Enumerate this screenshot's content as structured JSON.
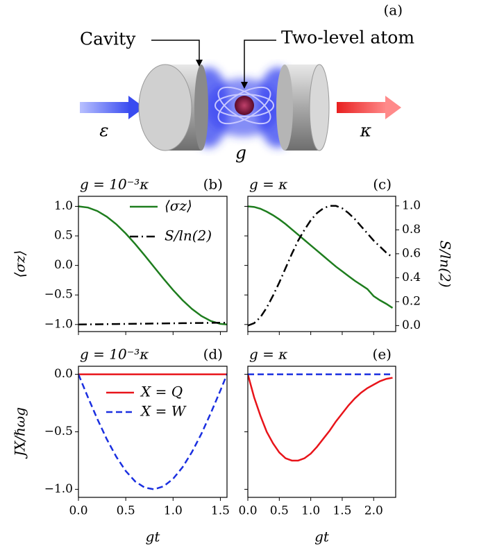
{
  "diagram": {
    "panel_label": "(a)",
    "cavity_label": "Cavity",
    "atom_label": "Two-level atom",
    "input_label": "ε",
    "coupling_label": "g",
    "output_label": "κ"
  },
  "chart_data": [
    {
      "type": "line",
      "title": "g = 10⁻³κ",
      "panel_label": "(b)",
      "ylabel": "⟨σz⟩",
      "x": [
        0,
        0.1,
        0.2,
        0.3,
        0.4,
        0.5,
        0.6,
        0.7,
        0.8,
        0.9,
        1.0,
        1.1,
        1.2,
        1.3,
        1.4,
        1.5,
        1.57
      ],
      "xlim": [
        0,
        1.57
      ],
      "ylim": [
        -1.12,
        1.17
      ],
      "yticks": [
        {
          "value": -1,
          "label": "−1.0"
        },
        {
          "value": -0.5,
          "label": "−0.5"
        },
        {
          "value": 0,
          "label": "0.0"
        },
        0.5,
        {
          "value": 1,
          "label": "1.0"
        }
      ],
      "legend": "upper right",
      "series": [
        {
          "name": "⟨σz⟩",
          "color": "#1e7d1e",
          "style": "solid",
          "values": [
            1,
            0.98,
            0.921,
            0.825,
            0.697,
            0.54,
            0.362,
            0.17,
            -0.029,
            -0.227,
            -0.416,
            -0.589,
            -0.737,
            -0.857,
            -0.942,
            -0.99,
            -1.0
          ]
        },
        {
          "name": "S/ln(2)",
          "color": "#000000",
          "style": "dashdot",
          "values": [
            -1.0,
            -0.998,
            -0.996,
            -0.994,
            -0.992,
            -0.99,
            -0.988,
            -0.986,
            -0.984,
            -0.982,
            -0.98,
            -0.978,
            -0.976,
            -0.974,
            -0.972,
            -0.97,
            -0.97
          ]
        }
      ]
    },
    {
      "type": "line",
      "title": "g = κ",
      "panel_label": "(c)",
      "y2label": "S/ln(2)",
      "x": [
        0,
        0.1,
        0.2,
        0.3,
        0.4,
        0.5,
        0.6,
        0.7,
        0.8,
        0.9,
        1.0,
        1.1,
        1.2,
        1.3,
        1.4,
        1.5,
        1.6,
        1.7,
        1.8,
        1.9,
        2.0,
        2.1,
        2.2,
        2.3
      ],
      "xlim": [
        0,
        2.35
      ],
      "ylim": [
        -1.12,
        1.17
      ],
      "y2lim": [
        -0.05,
        1.08
      ],
      "y2ticks": [
        {
          "value": 0,
          "label": "0.0"
        },
        0.2,
        0.4,
        0.6,
        0.8,
        {
          "value": 1,
          "label": "1.0"
        }
      ],
      "series": [
        {
          "color": "#1e7d1e",
          "style": "solid",
          "values": [
            1,
            0.99,
            0.96,
            0.91,
            0.85,
            0.78,
            0.7,
            0.61,
            0.52,
            0.43,
            0.34,
            0.25,
            0.16,
            0.07,
            -0.02,
            -0.1,
            -0.18,
            -0.26,
            -0.33,
            -0.4,
            -0.52,
            -0.59,
            -0.65,
            -0.72
          ]
        },
        {
          "color": "#000000",
          "style": "dashdot",
          "axis": "y2",
          "values": [
            0,
            0.02,
            0.07,
            0.15,
            0.25,
            0.36,
            0.48,
            0.6,
            0.71,
            0.8,
            0.88,
            0.94,
            0.98,
            1.0,
            1.0,
            0.98,
            0.94,
            0.89,
            0.83,
            0.77,
            0.71,
            0.66,
            0.61,
            0.57
          ]
        }
      ]
    },
    {
      "type": "line",
      "title": "g = 10⁻³κ",
      "panel_label": "(d)",
      "ylabel": "JX/ℏωg",
      "xlabel": "gt",
      "x": [
        0,
        0.1,
        0.2,
        0.3,
        0.4,
        0.5,
        0.6,
        0.7,
        0.8,
        0.9,
        1.0,
        1.1,
        1.2,
        1.3,
        1.4,
        1.5,
        1.57
      ],
      "xlim": [
        0,
        1.57
      ],
      "ylim": [
        -1.07,
        0.07
      ],
      "xticks": [
        {
          "value": 0,
          "label": "0.0"
        },
        0.5,
        {
          "value": 1,
          "label": "1.0"
        },
        1.5
      ],
      "yticks": [
        {
          "value": -1,
          "label": "−1.0"
        },
        {
          "value": -0.5,
          "label": "−0.5"
        },
        {
          "value": 0,
          "label": "0.0"
        }
      ],
      "legend": "upper center",
      "series": [
        {
          "name": "X = Q",
          "color": "#e8141a",
          "style": "solid",
          "values": [
            0,
            0,
            0,
            0,
            0,
            0,
            0,
            0,
            0,
            0,
            0,
            0,
            0,
            0,
            0,
            0,
            0
          ]
        },
        {
          "name": "X = W",
          "color": "#1a2fe0",
          "style": "dash",
          "values": [
            0,
            -0.199,
            -0.389,
            -0.565,
            -0.717,
            -0.841,
            -0.932,
            -0.985,
            -1.0,
            -0.974,
            -0.909,
            -0.808,
            -0.675,
            -0.516,
            -0.335,
            -0.141,
            0
          ]
        }
      ]
    },
    {
      "type": "line",
      "title": "g = κ",
      "panel_label": "(e)",
      "xlabel": "gt",
      "x": [
        0,
        0.1,
        0.2,
        0.3,
        0.4,
        0.5,
        0.6,
        0.7,
        0.8,
        0.9,
        1.0,
        1.1,
        1.2,
        1.3,
        1.4,
        1.5,
        1.6,
        1.7,
        1.8,
        1.9,
        2.0,
        2.1,
        2.2,
        2.3
      ],
      "xlim": [
        0,
        2.35
      ],
      "ylim": [
        -1.07,
        0.07
      ],
      "xticks": [
        {
          "value": 0,
          "label": "0.0"
        },
        0.5,
        {
          "value": 1,
          "label": "1.0"
        },
        1.5,
        {
          "value": 2,
          "label": "2.0"
        }
      ],
      "series": [
        {
          "color": "#e8141a",
          "style": "solid",
          "values": [
            0,
            -0.2,
            -0.36,
            -0.5,
            -0.6,
            -0.68,
            -0.73,
            -0.75,
            -0.75,
            -0.73,
            -0.69,
            -0.63,
            -0.56,
            -0.49,
            -0.41,
            -0.34,
            -0.27,
            -0.21,
            -0.16,
            -0.12,
            -0.09,
            -0.06,
            -0.04,
            -0.03
          ]
        },
        {
          "color": "#1a2fe0",
          "style": "dash",
          "values": [
            0,
            0,
            0,
            0,
            0,
            0,
            0,
            0,
            0,
            0,
            0,
            0,
            0,
            0,
            0,
            0,
            0,
            0,
            0,
            0,
            0,
            0,
            0,
            0
          ]
        }
      ]
    }
  ]
}
